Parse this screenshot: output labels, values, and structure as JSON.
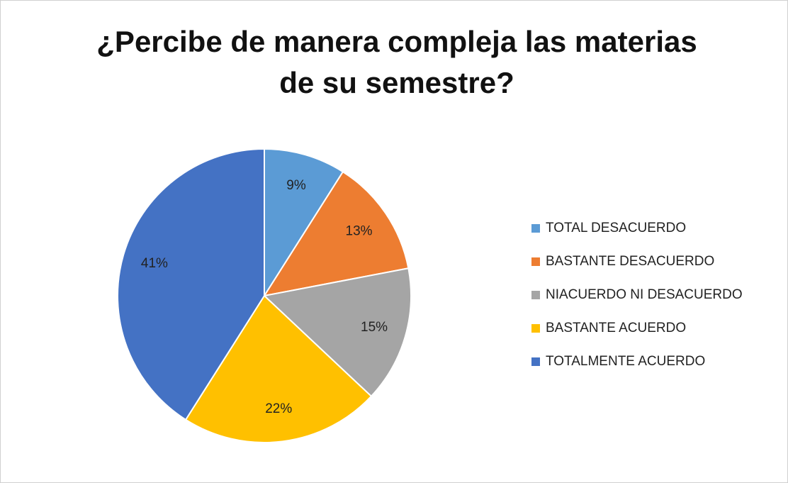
{
  "chart_data": {
    "type": "pie",
    "title": "¿Percibe de manera compleja las materias de su semestre?",
    "categories": [
      "TOTAL DESACUERDO",
      "BASTANTE DESACUERDO",
      "NIACUERDO NI DESACUERDO",
      "BASTANTE ACUERDO",
      "TOTALMENTE ACUERDO"
    ],
    "values": [
      9,
      13,
      15,
      22,
      41
    ],
    "value_labels": [
      "9%",
      "13%",
      "15%",
      "22%",
      "41%"
    ],
    "colors": [
      "#5b9bd5",
      "#ed7d31",
      "#a5a5a5",
      "#ffc000",
      "#4472c4"
    ],
    "legend": "right"
  }
}
